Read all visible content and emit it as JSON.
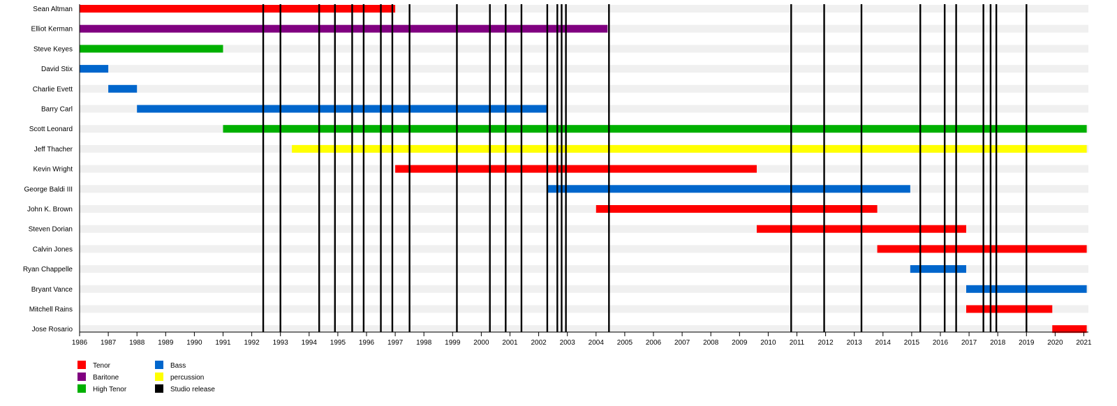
{
  "chart_data": {
    "type": "timeline",
    "title": "",
    "x_range": [
      1986,
      2021.1
    ],
    "x_ticks": [
      1986,
      1987,
      1988,
      1989,
      1990,
      1991,
      1992,
      1993,
      1994,
      1995,
      1996,
      1997,
      1998,
      1999,
      2000,
      2001,
      2002,
      2003,
      2004,
      2005,
      2006,
      2007,
      2008,
      2009,
      2010,
      2011,
      2012,
      2013,
      2014,
      2015,
      2016,
      2017,
      2018,
      2019,
      2020,
      2021
    ],
    "members": [
      {
        "name": "Sean Altman",
        "bars": [
          {
            "role": "Tenor",
            "start": 1986.0,
            "end": 1997.0
          }
        ]
      },
      {
        "name": "Elliot Kerman",
        "bars": [
          {
            "role": "Baritone",
            "start": 1986.0,
            "end": 2004.4
          }
        ]
      },
      {
        "name": "Steve Keyes",
        "bars": [
          {
            "role": "High Tenor",
            "start": 1986.0,
            "end": 1991.0
          }
        ]
      },
      {
        "name": "David Stix",
        "bars": [
          {
            "role": "Bass",
            "start": 1986.0,
            "end": 1987.0
          }
        ]
      },
      {
        "name": "Charlie Evett",
        "bars": [
          {
            "role": "Bass",
            "start": 1987.0,
            "end": 1988.0
          }
        ]
      },
      {
        "name": "Barry Carl",
        "bars": [
          {
            "role": "Bass",
            "start": 1988.0,
            "end": 2002.3
          }
        ]
      },
      {
        "name": "Scott Leonard",
        "bars": [
          {
            "role": "High Tenor",
            "start": 1991.0,
            "end": 2021.1
          }
        ]
      },
      {
        "name": "Jeff Thacher",
        "bars": [
          {
            "role": "percussion",
            "start": 1993.4,
            "end": 2021.1
          }
        ]
      },
      {
        "name": "Kevin Wright",
        "bars": [
          {
            "role": "Tenor",
            "start": 1997.0,
            "end": 2009.6
          }
        ]
      },
      {
        "name": "George Baldi III",
        "bars": [
          {
            "role": "Bass",
            "start": 2002.3,
            "end": 2014.95
          }
        ]
      },
      {
        "name": "John K. Brown",
        "bars": [
          {
            "role": "Tenor",
            "start": 2004.0,
            "end": 2013.8
          }
        ]
      },
      {
        "name": "Steven Dorian",
        "bars": [
          {
            "role": "Tenor",
            "start": 2009.6,
            "end": 2016.9
          }
        ]
      },
      {
        "name": "Calvin Jones",
        "bars": [
          {
            "role": "Tenor",
            "start": 2013.8,
            "end": 2021.1
          }
        ]
      },
      {
        "name": "Ryan Chappelle",
        "bars": [
          {
            "role": "Bass",
            "start": 2014.95,
            "end": 2016.9
          }
        ]
      },
      {
        "name": "Bryant Vance",
        "bars": [
          {
            "role": "Bass",
            "start": 2016.9,
            "end": 2021.1
          }
        ]
      },
      {
        "name": "Mitchell Rains",
        "bars": [
          {
            "role": "Tenor",
            "start": 2016.9,
            "end": 2019.9
          }
        ]
      },
      {
        "name": "Jose Rosario",
        "bars": [
          {
            "role": "Tenor",
            "start": 2019.9,
            "end": 2021.1
          }
        ]
      }
    ],
    "studio_releases": [
      1992.4,
      1993.0,
      1994.35,
      1994.9,
      1995.5,
      1995.9,
      1996.5,
      1996.9,
      1997.5,
      1999.15,
      2000.3,
      2000.85,
      2001.4,
      2002.3,
      2002.65,
      2002.8,
      2002.95,
      2004.45,
      2010.8,
      2011.95,
      2013.25,
      2015.3,
      2016.15,
      2016.55,
      2017.5,
      2017.75,
      2017.95,
      2019.0
    ],
    "legend": [
      {
        "label": "Tenor",
        "color": "#ff0000"
      },
      {
        "label": "Baritone",
        "color": "#800080"
      },
      {
        "label": "High Tenor",
        "color": "#00b000"
      },
      {
        "label": "Bass",
        "color": "#0066cc"
      },
      {
        "label": "percussion",
        "color": "#ffff00"
      },
      {
        "label": "Studio release",
        "color": "#000000"
      }
    ],
    "legend_placement": "bottom-left",
    "grid": "alternating row bands"
  }
}
